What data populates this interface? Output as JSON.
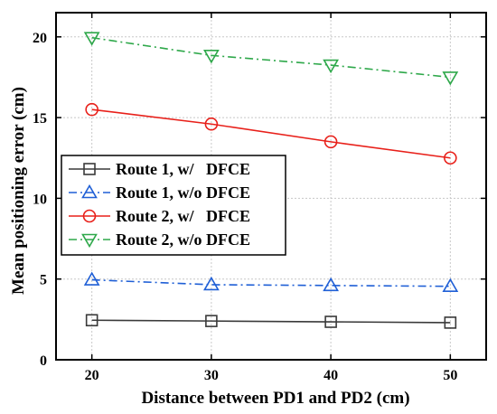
{
  "chart_data": {
    "type": "line",
    "title": "",
    "xlabel": "Distance between PD1 and PD2 (cm)",
    "ylabel": "Mean positioning error (cm)",
    "x": [
      20,
      30,
      40,
      50
    ],
    "xlim": [
      17,
      53
    ],
    "ylim": [
      0,
      21.5
    ],
    "xticks": [
      20,
      30,
      40,
      50
    ],
    "yticks": [
      0,
      5,
      10,
      15,
      20
    ],
    "grid": true,
    "legend_position": "middle-left",
    "series": [
      {
        "name": "Route 1, w/   DFCE",
        "values": [
          2.45,
          2.4,
          2.35,
          2.3
        ],
        "color": "#3a3a3a",
        "marker": "square",
        "line_style": "solid"
      },
      {
        "name": "Route 1, w/o DFCE",
        "values": [
          4.95,
          4.65,
          4.6,
          4.55
        ],
        "color": "#1f5fd6",
        "marker": "triangle-up",
        "line_style": "dashdot"
      },
      {
        "name": "Route 2, w/   DFCE",
        "values": [
          15.5,
          14.6,
          13.5,
          12.5
        ],
        "color": "#e8201a",
        "marker": "circle",
        "line_style": "solid"
      },
      {
        "name": "Route 2, w/o DFCE",
        "values": [
          19.95,
          18.85,
          18.25,
          17.5
        ],
        "color": "#2ea84a",
        "marker": "triangle-down",
        "line_style": "dashdot"
      }
    ]
  }
}
